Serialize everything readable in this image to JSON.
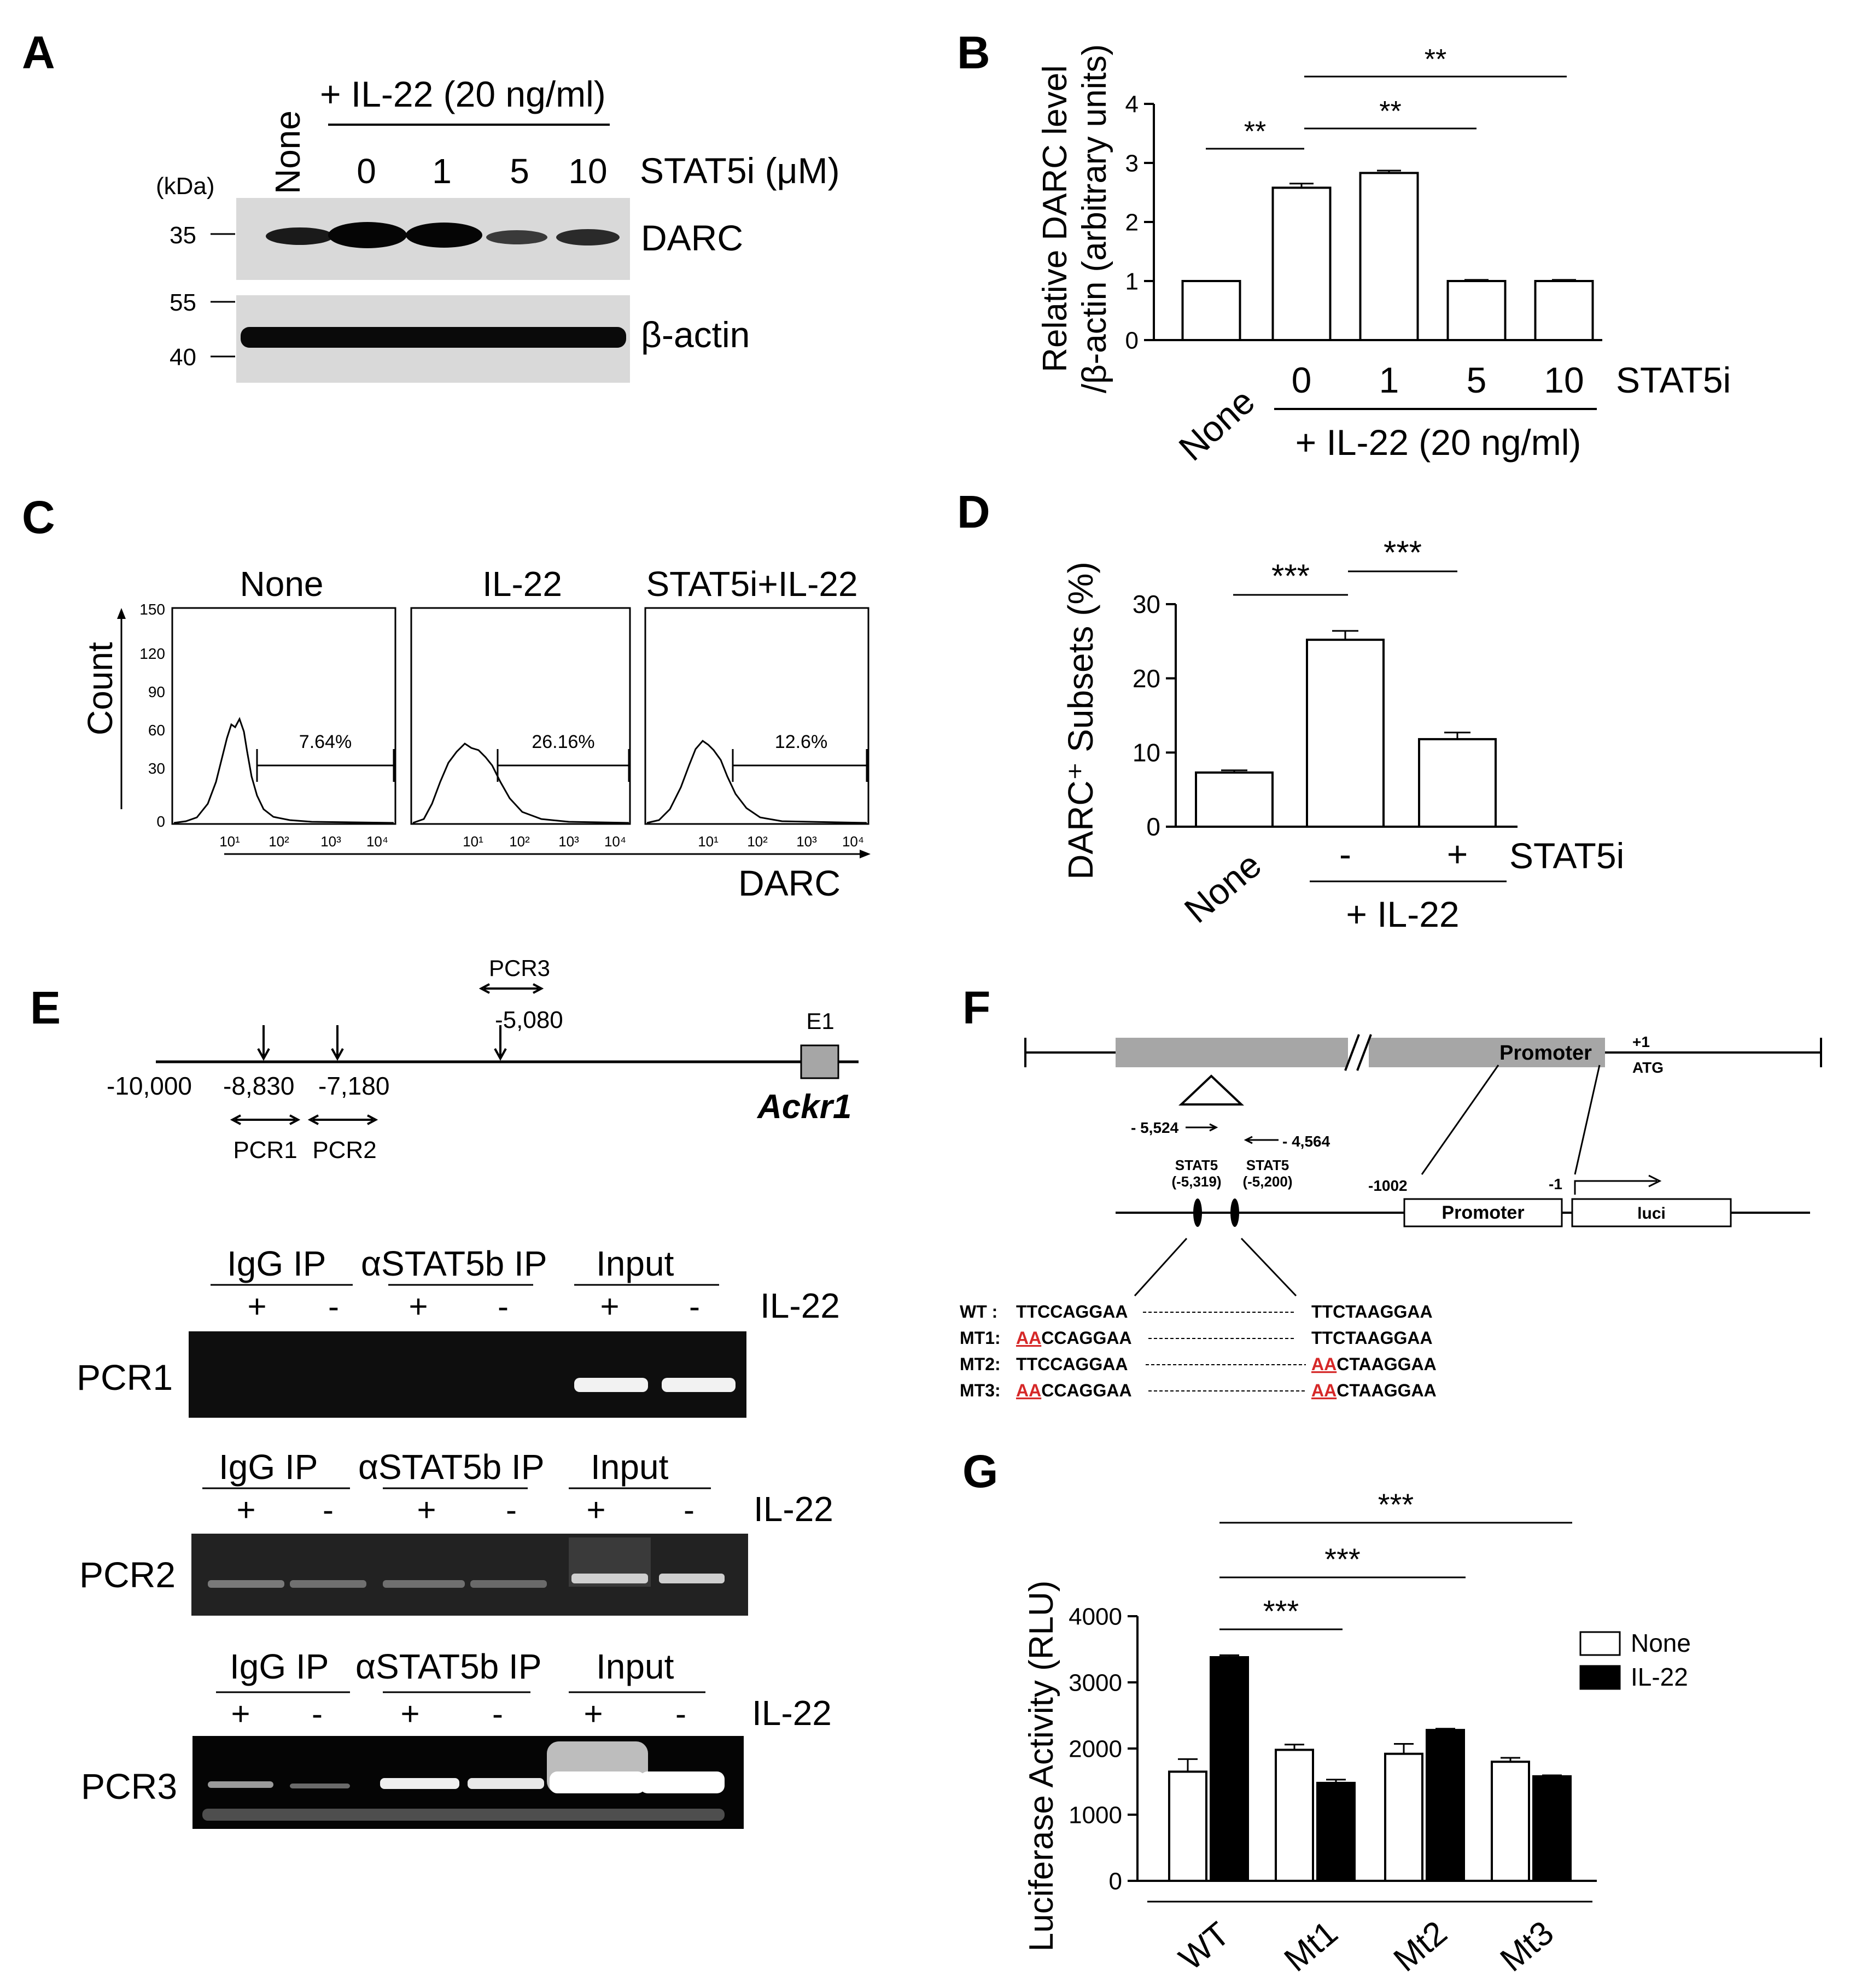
{
  "panels": {
    "A": {
      "letter": "A",
      "treatment": "+ IL-22 (20 ng/ml)",
      "none_label": "None",
      "doses": [
        "0",
        "1",
        "5",
        "10"
      ],
      "dose_label": "STAT5i (μM)",
      "kda_label": "(kDa)",
      "markers": [
        "35",
        "55",
        "40"
      ],
      "blots": [
        "DARC",
        "β-actin"
      ]
    },
    "B": {
      "letter": "B"
    },
    "C": {
      "letter": "C",
      "titles": [
        "None",
        "IL-22",
        "STAT5i+IL-22"
      ],
      "percents": [
        "7.64%",
        "26.16%",
        "12.6%"
      ],
      "ylabel": "Count",
      "xlabel": "DARC",
      "yticks": [
        "150",
        "120",
        "90",
        "60",
        "30",
        "0"
      ],
      "xticks": [
        "10¹",
        "10²",
        "10³",
        "10⁴"
      ]
    },
    "D": {
      "letter": "D"
    },
    "E": {
      "letter": "E",
      "pcr3_label": "PCR3",
      "pos_5080": "-5,080",
      "e1": "E1",
      "pos_10000": "-10,000",
      "pos_8830": "-8,830",
      "pos_7180": "-7,180",
      "gene": "Ackr1",
      "pcr1": "PCR1",
      "pcr2": "PCR2",
      "gels": [
        {
          "name": "PCR1",
          "headers": [
            "IgG IP",
            "αSTAT5b IP",
            "Input"
          ],
          "signs": [
            "+",
            "-",
            "+",
            "-",
            "+",
            "-"
          ],
          "treat": "IL-22"
        },
        {
          "name": "PCR2",
          "headers": [
            "IgG IP",
            "αSTAT5b IP",
            "Input"
          ],
          "signs": [
            "+",
            "-",
            "+",
            "-",
            "+",
            "-"
          ],
          "treat": "IL-22"
        },
        {
          "name": "PCR3",
          "headers": [
            "IgG IP",
            "αSTAT5b IP",
            "Input"
          ],
          "signs": [
            "+",
            "-",
            "+",
            "-",
            "+",
            "-"
          ],
          "treat": "IL-22"
        }
      ]
    },
    "F": {
      "letter": "F",
      "promoter": "Promoter",
      "plus1": "+1",
      "atg": "ATG",
      "p5524": "- 5,524",
      "p4564": "- 4,564",
      "stat5": "STAT5",
      "s5319": "(-5,319)",
      "s5200": "(-5,200)",
      "p1002": "-1002",
      "m1": "-1",
      "promoter_box": "Promoter",
      "luci": "luci",
      "seqs": [
        {
          "label": "WT :",
          "mut_a": "",
          "left": "TTCCAGGAA",
          "mut_b": "",
          "right": "TTCTAAGGAA"
        },
        {
          "label": "MT1:",
          "mut_a": "AA",
          "left": "CCAGGAA",
          "mut_b": "",
          "right": "TTCTAAGGAA"
        },
        {
          "label": "MT2:",
          "mut_a": "",
          "left": "TTCCAGGAA",
          "mut_b": "AA",
          "right": "CTAAGGAA"
        },
        {
          "label": "MT3:",
          "mut_a": "AA",
          "left": "CCAGGAA",
          "mut_b": "AA",
          "right": "CTAAGGAA"
        }
      ]
    },
    "G": {
      "letter": "G"
    }
  },
  "chart_data": [
    {
      "panel": "B",
      "type": "bar",
      "categories": [
        "None",
        "0",
        "1",
        "5",
        "10"
      ],
      "values": [
        1.0,
        2.58,
        2.83,
        1.0,
        1.0
      ],
      "errors": [
        0.0,
        0.07,
        0.04,
        0.02,
        0.02
      ],
      "ylabel": "Relative DARC level /β-actin (arbitrary units)",
      "ylim": [
        0,
        4
      ],
      "yticks": [
        0,
        1,
        2,
        3,
        4
      ],
      "suffix_label": "STAT5i",
      "group_label": "+ IL-22 (20 ng/ml)",
      "significance": [
        {
          "from": 0,
          "to": 1,
          "label": "**"
        },
        {
          "from": 1,
          "to": 3,
          "label": "**"
        },
        {
          "from": 1,
          "to": 4,
          "label": "**"
        }
      ],
      "color": "#ffffff",
      "stroke": "#000000"
    },
    {
      "panel": "D",
      "type": "bar",
      "categories": [
        "None",
        "-",
        "+"
      ],
      "values": [
        7.3,
        25.2,
        11.8
      ],
      "errors": [
        0.3,
        1.2,
        0.9
      ],
      "ylabel": "DARC⁺ Subsets (%)",
      "ylim": [
        0,
        30
      ],
      "yticks": [
        0,
        10,
        20,
        30
      ],
      "suffix_label": "STAT5i",
      "group_label": "+ IL-22",
      "significance": [
        {
          "from": 0,
          "to": 1,
          "label": "***"
        },
        {
          "from": 1,
          "to": 2,
          "label": "***"
        }
      ],
      "color": "#ffffff",
      "stroke": "#000000"
    },
    {
      "panel": "G",
      "type": "bar",
      "categories": [
        "WT",
        "Mt1",
        "Mt2",
        "Mt3"
      ],
      "series": [
        {
          "name": "None",
          "values": [
            1650,
            1980,
            1920,
            1800
          ],
          "errors": [
            190,
            80,
            150,
            60
          ],
          "color": "#ffffff"
        },
        {
          "name": "IL-22",
          "values": [
            3380,
            1480,
            2280,
            1580
          ],
          "errors": [
            30,
            50,
            20,
            15
          ],
          "color": "#000000"
        }
      ],
      "ylabel": "Luciferase Activity (RLU)",
      "ylim": [
        0,
        4000
      ],
      "yticks": [
        0,
        1000,
        2000,
        3000,
        4000
      ],
      "significance": [
        {
          "from": "WT",
          "to": "Mt1",
          "label": "***"
        },
        {
          "from": "WT",
          "to": "Mt2",
          "label": "***"
        },
        {
          "from": "WT",
          "to": "Mt3",
          "label": "***"
        }
      ],
      "legend": "right"
    }
  ]
}
